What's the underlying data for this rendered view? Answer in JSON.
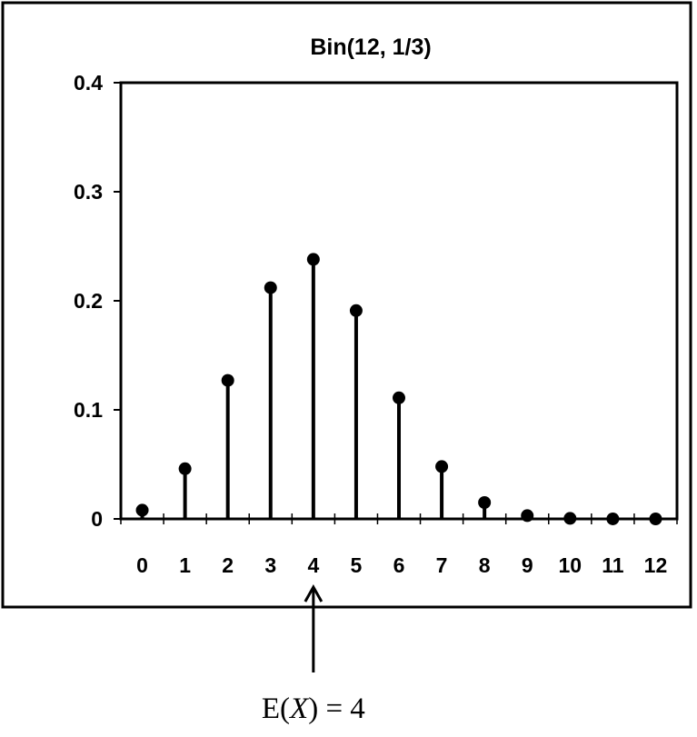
{
  "chart_data": {
    "type": "stem",
    "title": "Bin(12, 1/3)",
    "xlabel": "",
    "ylabel": "",
    "x": [
      0,
      1,
      2,
      3,
      4,
      5,
      6,
      7,
      8,
      9,
      10,
      11,
      12
    ],
    "x_tick_labels": [
      "0",
      "1",
      "2",
      "3",
      "4",
      "5",
      "6",
      "7",
      "8",
      "9",
      "10",
      "11",
      "12"
    ],
    "values": [
      0.008,
      0.046,
      0.127,
      0.212,
      0.238,
      0.191,
      0.111,
      0.048,
      0.015,
      0.003,
      0.0005,
      5e-05,
      2e-06
    ],
    "ylim": [
      0,
      0.4
    ],
    "y_ticks": [
      0,
      0.1,
      0.2,
      0.3,
      0.4
    ],
    "y_tick_labels": [
      "0",
      "0.1",
      "0.2",
      "0.3",
      "0.4"
    ],
    "grid": false,
    "marker_color": "#000000",
    "annotation": {
      "target_x": 4,
      "text_prefix": "E(",
      "text_var": "X",
      "text_suffix": ") = 4"
    }
  }
}
